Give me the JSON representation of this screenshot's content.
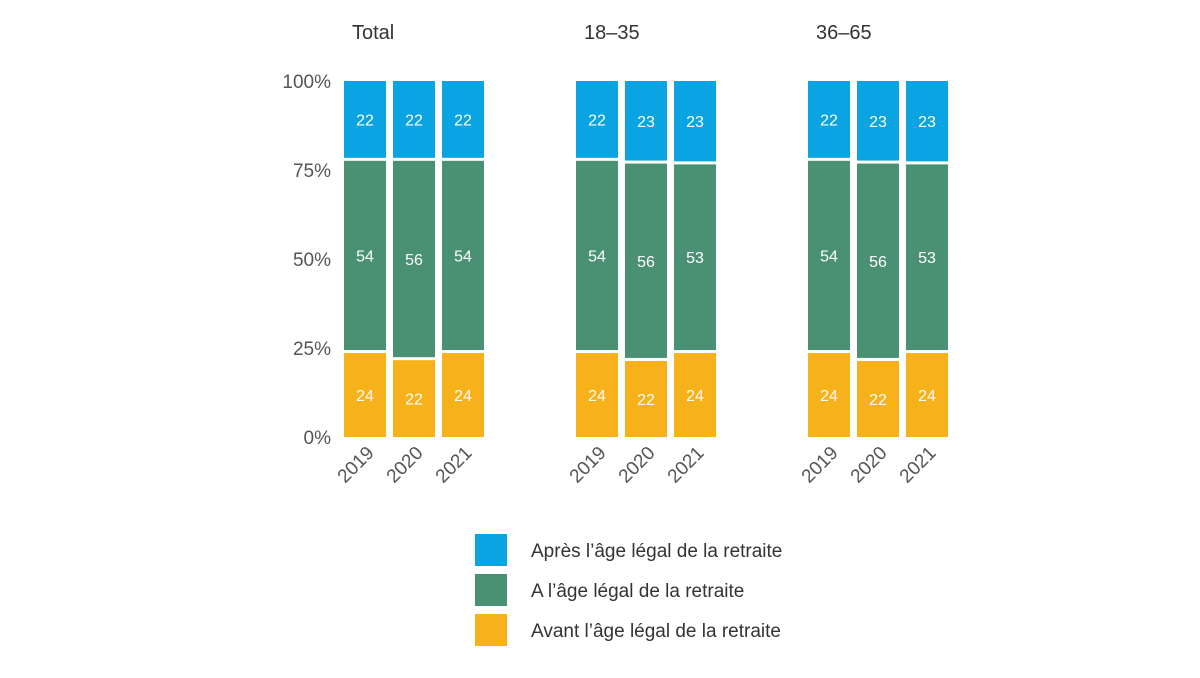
{
  "chart_data": {
    "type": "bar",
    "stacked": true,
    "stack_mode": "percent",
    "ylim": [
      0,
      100
    ],
    "yticks": [
      "0%",
      "25%",
      "50%",
      "75%",
      "100%"
    ],
    "categories": [
      "2019",
      "2020",
      "2021"
    ],
    "series_meta": [
      {
        "name": "Avant l’âge légal de la retraite",
        "color": "#F7B11B"
      },
      {
        "name": "A l’âge légal de la retraite",
        "color": "#4A9173"
      },
      {
        "name": "Après l’âge légal de la retraite",
        "color": "#0AA4E3"
      }
    ],
    "legend_order": [
      2,
      1,
      0
    ],
    "legend_position": "bottom-center",
    "panels": [
      {
        "title": "Total",
        "series": [
          [
            24,
            22,
            24
          ],
          [
            54,
            56,
            54
          ],
          [
            22,
            22,
            22
          ]
        ]
      },
      {
        "title": "18–35",
        "series": [
          [
            24,
            22,
            24
          ],
          [
            54,
            56,
            53
          ],
          [
            22,
            23,
            23
          ]
        ]
      },
      {
        "title": "36–65",
        "series": [
          [
            24,
            22,
            24
          ],
          [
            54,
            56,
            53
          ],
          [
            22,
            23,
            23
          ]
        ]
      }
    ]
  }
}
